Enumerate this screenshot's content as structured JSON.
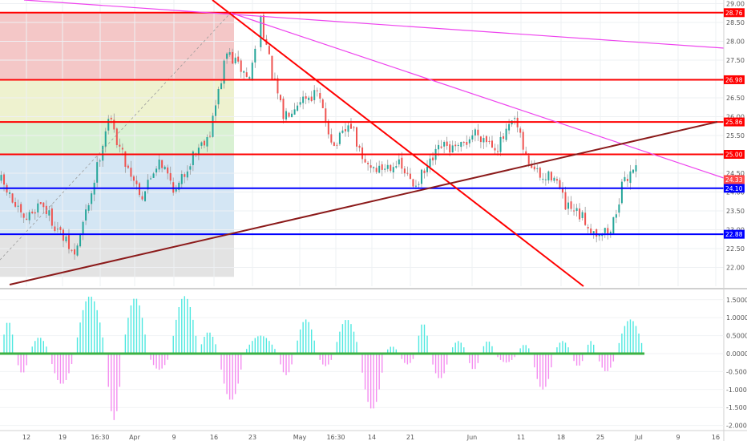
{
  "chart_data": [
    {
      "type": "candlestick",
      "title": "",
      "xlabel": "",
      "ylabel": "",
      "ylim": [
        21.75,
        29.05
      ],
      "y_ticks": [
        "29.00",
        "28.50",
        "28.00",
        "27.50",
        "27.00",
        "26.50",
        "26.00",
        "25.50",
        "25.00",
        "24.50",
        "24.00",
        "23.50",
        "23.00",
        "22.50",
        "22.00"
      ],
      "x_ticks": [
        "12",
        "19",
        "16:30",
        "Apr",
        "9",
        "16",
        "23",
        "May",
        "16:30",
        "14",
        "21",
        "Jun",
        "11",
        "18",
        "25",
        "Jul",
        "9",
        "16"
      ],
      "grid": true,
      "candles": {
        "count": 174,
        "close_path": [
          [
            0,
            24.3
          ],
          [
            8,
            23.2
          ],
          [
            14,
            23.75
          ],
          [
            20,
            23.0
          ],
          [
            26,
            22.3
          ],
          [
            32,
            24.0
          ],
          [
            38,
            26.0
          ],
          [
            44,
            24.8
          ],
          [
            50,
            23.9
          ],
          [
            56,
            24.9
          ],
          [
            62,
            24.0
          ],
          [
            68,
            25.0
          ],
          [
            74,
            25.6
          ],
          [
            80,
            27.7
          ],
          [
            88,
            27.0
          ],
          [
            92,
            28.65
          ],
          [
            96,
            27.1
          ],
          [
            100,
            26.0
          ],
          [
            106,
            26.5
          ],
          [
            112,
            26.6
          ],
          [
            118,
            25.2
          ],
          [
            124,
            25.8
          ],
          [
            128,
            24.8
          ],
          [
            134,
            24.6
          ],
          [
            140,
            24.8
          ],
          [
            146,
            24.2
          ],
          [
            150,
            24.5
          ],
          [
            156,
            25.2
          ],
          [
            162,
            25.1
          ],
          [
            168,
            25.6
          ],
          [
            176,
            25.2
          ],
          [
            182,
            25.9
          ],
          [
            186,
            24.9
          ],
          [
            192,
            24.3
          ],
          [
            196,
            24.5
          ],
          [
            200,
            23.6
          ],
          [
            206,
            23.3
          ],
          [
            210,
            22.95
          ],
          [
            216,
            22.95
          ],
          [
            220,
            24.1
          ],
          [
            224,
            24.7
          ],
          [
            228,
            24.4
          ]
        ]
      },
      "price_levels": [
        {
          "value": 28.76,
          "label": "28.76",
          "color": "#ff0000"
        },
        {
          "value": 26.98,
          "label": "26.98",
          "color": "#ff0000"
        },
        {
          "value": 25.86,
          "label": "25.86",
          "color": "#ff0000"
        },
        {
          "value": 25.0,
          "label": "25.00",
          "color": "#ff0000"
        },
        {
          "value": 24.1,
          "label": "24.10",
          "color": "#0000ff"
        },
        {
          "value": 22.88,
          "label": "22.88",
          "color": "#0000ff"
        }
      ],
      "last_price": {
        "value": 24.33,
        "label": "24.33",
        "color": "#ff4a4a"
      },
      "fib_zones": [
        {
          "from": 28.76,
          "to": 26.98,
          "color": "#f4c7c7"
        },
        {
          "from": 26.98,
          "to": 25.86,
          "color": "#eef2cf"
        },
        {
          "from": 25.86,
          "to": 25.0,
          "color": "#d9f1d3"
        },
        {
          "from": 25.0,
          "to": 22.88,
          "color": "#d4e6f4"
        },
        {
          "from": 22.88,
          "to": 21.75,
          "color": "#e3e3e3"
        }
      ],
      "colors": {
        "up": "#26a69a",
        "down": "#ef5350",
        "wick": "#999999",
        "trendline_red": "#ff0000",
        "trendline_magenta": "#ee44ee",
        "trendline_darkred": "#8b1a1a"
      }
    },
    {
      "type": "histogram",
      "title": "",
      "ylim": [
        -2.1,
        1.75
      ],
      "y_ticks": [
        "1.5000",
        "1.0000",
        "0.5000",
        "0.0000",
        "-0.5000",
        "-1.0000",
        "-1.5000",
        "-2.0000"
      ],
      "zero_line_color": "#3cb043",
      "colors": {
        "positive": "#4ee8e0",
        "negative": "#f48cf0"
      },
      "humps": [
        {
          "start": 0,
          "end": 5,
          "peak": 0.9
        },
        {
          "start": 5,
          "end": 10,
          "peak": -0.55
        },
        {
          "start": 10,
          "end": 17,
          "peak": 0.45
        },
        {
          "start": 17,
          "end": 26,
          "peak": -0.85
        },
        {
          "start": 26,
          "end": 37,
          "peak": 1.6
        },
        {
          "start": 37,
          "end": 43,
          "peak": -1.85
        },
        {
          "start": 43,
          "end": 52,
          "peak": 1.55
        },
        {
          "start": 52,
          "end": 60,
          "peak": -0.45
        },
        {
          "start": 60,
          "end": 70,
          "peak": 1.6
        },
        {
          "start": 70,
          "end": 77,
          "peak": 0.6
        },
        {
          "start": 77,
          "end": 86,
          "peak": -1.3
        },
        {
          "start": 86,
          "end": 98,
          "peak": 0.5
        },
        {
          "start": 98,
          "end": 104,
          "peak": -0.6
        },
        {
          "start": 104,
          "end": 112,
          "peak": 0.95
        },
        {
          "start": 112,
          "end": 118,
          "peak": -0.35
        },
        {
          "start": 118,
          "end": 127,
          "peak": 0.95
        },
        {
          "start": 127,
          "end": 136,
          "peak": -1.55
        },
        {
          "start": 136,
          "end": 141,
          "peak": 0.2
        },
        {
          "start": 141,
          "end": 147,
          "peak": -0.3
        },
        {
          "start": 147,
          "end": 152,
          "peak": 0.85
        },
        {
          "start": 152,
          "end": 159,
          "peak": -0.7
        },
        {
          "start": 159,
          "end": 165,
          "peak": 0.35
        },
        {
          "start": 165,
          "end": 170,
          "peak": -0.45
        },
        {
          "start": 170,
          "end": 175,
          "peak": 0.35
        },
        {
          "start": 175,
          "end": 183,
          "peak": -0.25
        },
        {
          "start": 183,
          "end": 188,
          "peak": 0.25
        },
        {
          "start": 188,
          "end": 196,
          "peak": -1.0
        },
        {
          "start": 196,
          "end": 202,
          "peak": 0.35
        },
        {
          "start": 202,
          "end": 207,
          "peak": -0.35
        },
        {
          "start": 207,
          "end": 211,
          "peak": 0.35
        },
        {
          "start": 211,
          "end": 218,
          "peak": -0.5
        },
        {
          "start": 218,
          "end": 228,
          "peak": 0.95
        }
      ]
    }
  ]
}
